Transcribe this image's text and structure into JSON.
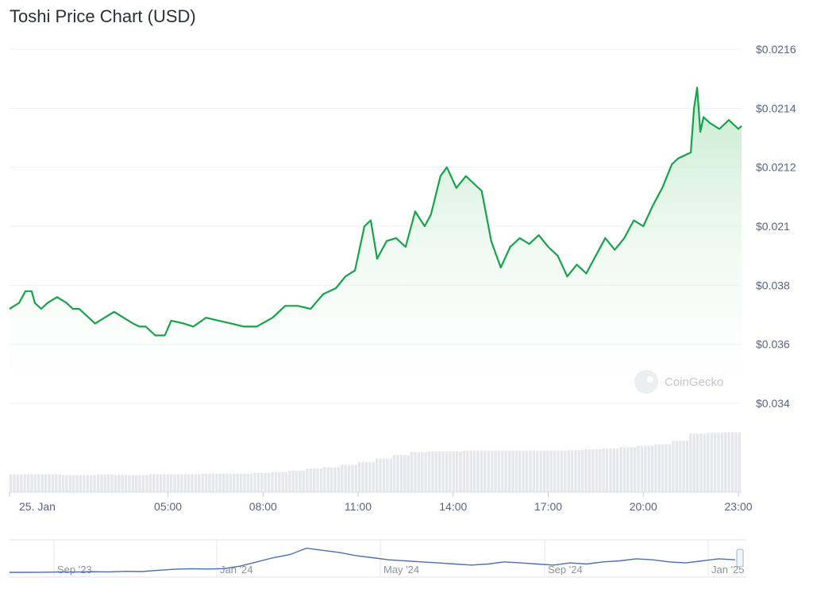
{
  "header": {
    "title": "Toshi Price Chart (USD)"
  },
  "watermark": "CoinGecko",
  "colors": {
    "line": "#16a34a",
    "area_top": "#bfe8c9",
    "volume": "#e5e7eb",
    "navigator": "#4a6fb5",
    "grid": "#eef0f3"
  },
  "chart_data": {
    "type": "line",
    "title": "Toshi Price Chart (USD)",
    "y_tick_labels": [
      "$0.0216",
      "$0.0214",
      "$0.0212",
      "$0.021",
      "$0.038",
      "$0.036",
      "$0.034"
    ],
    "x_tick_labels": [
      "25. Jan",
      "05:00",
      "08:00",
      "11:00",
      "14:00",
      "17:00",
      "20:00",
      "23:00"
    ],
    "x_tick_hours": [
      0,
      5,
      8,
      11,
      14,
      17,
      20,
      23
    ],
    "x_range_hours": [
      0,
      23.1
    ],
    "ylim": [
      0.034,
      0.0216
    ],
    "series": [
      {
        "x": [
          0,
          0.3,
          0.5,
          0.7,
          0.8,
          1.0,
          1.2,
          1.5,
          1.8,
          2.0,
          2.2,
          2.4,
          2.7,
          3.0,
          3.3,
          3.6,
          3.9,
          4.1,
          4.3,
          4.6,
          4.9,
          5.1,
          5.5,
          5.8,
          6.2,
          6.6,
          7.0,
          7.4,
          7.8,
          8.3,
          8.7,
          9.1,
          9.5,
          9.9,
          10.3,
          10.6,
          10.9,
          11.2,
          11.4,
          11.6,
          11.9,
          12.2,
          12.5,
          12.8,
          13.1,
          13.3,
          13.6,
          13.8,
          14.1,
          14.4,
          14.7,
          14.9,
          15.2,
          15.5,
          15.8,
          16.1,
          16.4,
          16.7,
          17.0,
          17.3,
          17.6,
          17.9,
          18.2,
          18.5,
          18.8,
          19.1,
          19.4,
          19.7,
          20.0,
          20.3,
          20.6,
          20.9,
          21.1,
          21.3,
          21.5,
          21.6,
          21.7,
          21.8,
          21.9,
          22.1,
          22.4,
          22.7,
          23.0,
          23.1
        ],
        "y": [
          0.0372,
          0.0374,
          0.0378,
          0.0378,
          0.0374,
          0.0372,
          0.0374,
          0.0376,
          0.0374,
          0.0372,
          0.0372,
          0.037,
          0.0367,
          0.0369,
          0.0371,
          0.0369,
          0.0367,
          0.0366,
          0.0366,
          0.0363,
          0.0363,
          0.0368,
          0.0367,
          0.0366,
          0.0369,
          0.0368,
          0.0367,
          0.0366,
          0.0366,
          0.0369,
          0.0373,
          0.0373,
          0.0372,
          0.0377,
          0.0379,
          0.0383,
          0.0385,
          0.021,
          0.02102,
          0.0389,
          0.02095,
          0.02096,
          0.02093,
          0.02105,
          0.021,
          0.02104,
          0.02117,
          0.0212,
          0.02113,
          0.02117,
          0.02114,
          0.02112,
          0.02095,
          0.02086,
          0.02093,
          0.02096,
          0.02094,
          0.02097,
          0.02093,
          0.0209,
          0.02083,
          0.02087,
          0.02084,
          0.0209,
          0.02096,
          0.02092,
          0.02096,
          0.02102,
          0.021,
          0.02107,
          0.02113,
          0.02121,
          0.02123,
          0.02124,
          0.02125,
          0.0214,
          0.02147,
          0.02132,
          0.02137,
          0.02135,
          0.02133,
          0.02136,
          0.02133,
          0.02134
        ]
      }
    ],
    "volume_relative": [
      0.25,
      0.25,
      0.25,
      0.24,
      0.24,
      0.25,
      0.24,
      0.24,
      0.25,
      0.25,
      0.25,
      0.26,
      0.26,
      0.26,
      0.27,
      0.28,
      0.3,
      0.33,
      0.35,
      0.38,
      0.42,
      0.47,
      0.52,
      0.56,
      0.57,
      0.57,
      0.58,
      0.58,
      0.58,
      0.58,
      0.58,
      0.58,
      0.59,
      0.6,
      0.61,
      0.63,
      0.65,
      0.67,
      0.72,
      0.82,
      0.83,
      0.84
    ],
    "navigator_labels": [
      "Sep '23",
      "Jan '24",
      "May '24",
      "Sep '24",
      "Jan '25"
    ],
    "navigator_values": [
      0.3,
      0.3,
      0.32,
      0.34,
      0.33,
      0.36,
      0.35,
      0.4,
      0.38,
      0.5,
      0.6,
      0.65,
      0.62,
      0.66,
      0.9,
      1.3,
      1.7,
      2.0,
      2.6,
      2.4,
      2.2,
      1.9,
      1.7,
      1.5,
      1.4,
      1.3,
      1.2,
      1.1,
      1.0,
      1.1,
      1.3,
      1.2,
      1.1,
      1.0,
      1.2,
      1.1,
      1.3,
      1.4,
      1.6,
      1.5,
      1.3,
      1.2,
      1.4,
      1.6,
      1.5
    ]
  }
}
